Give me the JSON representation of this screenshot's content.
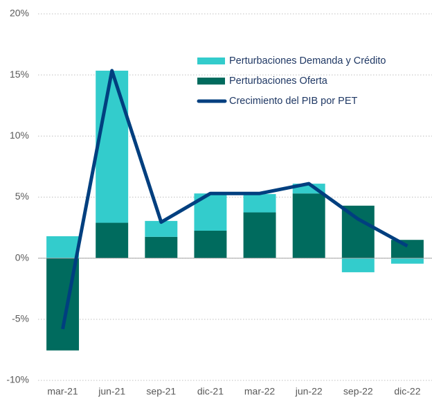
{
  "chart_data": {
    "type": "bar",
    "stacked": true,
    "categories": [
      "mar-21",
      "jun-21",
      "sep-21",
      "dic-21",
      "mar-22",
      "jun-22",
      "sep-22",
      "dic-22"
    ],
    "series": [
      {
        "name": "Perturbaciones Oferta",
        "type": "bar",
        "color": "#006b5e",
        "values": [
          -7.55,
          2.9,
          1.75,
          2.25,
          3.75,
          5.3,
          4.3,
          1.5
        ]
      },
      {
        "name": "Perturbaciones Demanda y Crédito",
        "type": "bar",
        "color": "#33cccc",
        "values": [
          1.8,
          12.45,
          1.3,
          3.05,
          1.5,
          0.8,
          -1.15,
          -0.45
        ]
      },
      {
        "name": "Crecimiento del PIB por PET",
        "type": "line",
        "color": "#003f7f",
        "values": [
          -5.8,
          15.35,
          2.95,
          5.3,
          5.3,
          6.1,
          3.2,
          1.0
        ]
      }
    ],
    "legend_order": [
      1,
      0,
      2
    ],
    "ylim": [
      -10,
      20
    ],
    "yticks": [
      {
        "value": -10,
        "label": "-10%"
      },
      {
        "value": -5,
        "label": "-5%"
      },
      {
        "value": 0,
        "label": "0%"
      },
      {
        "value": 5,
        "label": "5%"
      },
      {
        "value": 10,
        "label": "10%"
      },
      {
        "value": 15,
        "label": "15%"
      },
      {
        "value": 20,
        "label": "20%"
      }
    ],
    "grid": true,
    "legend": "upper right"
  }
}
